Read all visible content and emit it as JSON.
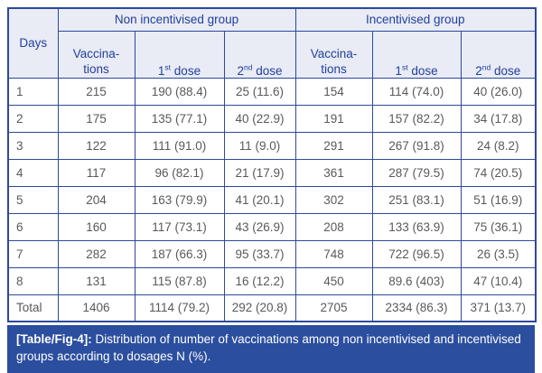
{
  "colors": {
    "border": "#2b4a9b",
    "header_bg": "#e9ebf5",
    "header_text": "#21409a",
    "body_text": "#58595b",
    "caption_bg": "#2b4e9e",
    "caption_text": "#ffffff"
  },
  "table": {
    "days_header": "Days",
    "groups": [
      "Non incentivised group",
      "Incentivised group"
    ],
    "sub_headers": {
      "vaccinations": "Vaccina-\ntions",
      "dose1": {
        "num": "1",
        "sup": "st",
        "rest": " dose"
      },
      "dose2": {
        "num": "2",
        "sup": "nd",
        "rest": " dose"
      }
    },
    "rows": [
      {
        "day": "1",
        "cells": [
          "215",
          "190 (88.4)",
          "25 (11.6)",
          "154",
          "114 (74.0)",
          "40 (26.0)"
        ]
      },
      {
        "day": "2",
        "cells": [
          "175",
          "135 (77.1)",
          "40 (22.9)",
          "191",
          "157 (82.2)",
          "34 (17.8)"
        ]
      },
      {
        "day": "3",
        "cells": [
          "122",
          "111 (91.0)",
          "11 (9.0)",
          "291",
          "267 (91.8)",
          "24 (8.2)"
        ]
      },
      {
        "day": "4",
        "cells": [
          "117",
          "96 (82.1)",
          "21 (17.9)",
          "361",
          "287 (79.5)",
          "74 (20.5)"
        ]
      },
      {
        "day": "5",
        "cells": [
          "204",
          "163 (79.9)",
          "41 (20.1)",
          "302",
          "251 (83.1)",
          "51 (16.9)"
        ]
      },
      {
        "day": "6",
        "cells": [
          "160",
          "117 (73.1)",
          "43 (26.9)",
          "208",
          "133 (63.9)",
          "75 (36.1)"
        ]
      },
      {
        "day": "7",
        "cells": [
          "282",
          "187 (66.3)",
          "95 (33.7)",
          "748",
          "722 (96.5)",
          "26 (3.5)"
        ]
      },
      {
        "day": "8",
        "cells": [
          "131",
          "115 (87.8)",
          "16 (12.2)",
          "450",
          "89.6 (403)",
          "47 (10.4)"
        ]
      },
      {
        "day": "Total",
        "cells": [
          "1406",
          "1114 (79.2)",
          "292 (20.8)",
          "2705",
          "2334 (86.3)",
          "371 (13.7)"
        ]
      }
    ]
  },
  "caption": {
    "label": "[Table/Fig-4]:",
    "text": "Distribution of number of vaccinations among non incentivised and incentivised groups according to dosages N (%)."
  }
}
